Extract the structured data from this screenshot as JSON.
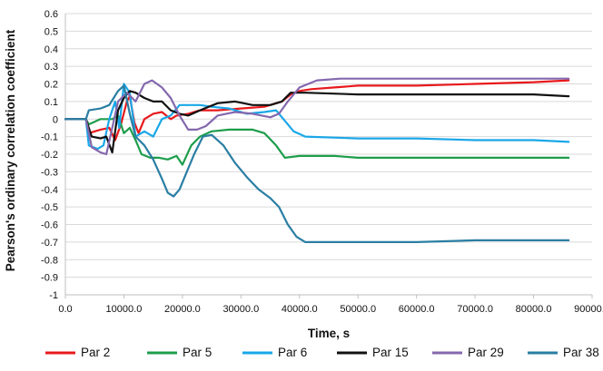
{
  "chart_data": {
    "type": "line",
    "xlabel": "Time, s",
    "ylabel": "Pearson's ordinary correlation coefficient",
    "xlim": [
      0,
      90000
    ],
    "ylim": [
      -1,
      0.6
    ],
    "x_ticks": [
      0,
      10000,
      20000,
      30000,
      40000,
      50000,
      60000,
      70000,
      80000,
      90000
    ],
    "x_tick_labels": [
      "0.0",
      "10000.0",
      "20000.0",
      "30000.0",
      "40000.0",
      "50000.0",
      "60000.0",
      "70000.0",
      "80000.0",
      "90000.0"
    ],
    "y_ticks": [
      0.6,
      0.5,
      0.4,
      0.3,
      0.2,
      0.1,
      0,
      -0.1,
      -0.2,
      -0.3,
      -0.4,
      -0.5,
      -0.6,
      -0.7,
      -0.8,
      -0.9,
      -1
    ],
    "y_tick_labels": [
      "0.6",
      "0.5",
      "0.4",
      "0.3",
      "0.2",
      "0.1",
      "0",
      "-0.1",
      "-0.2",
      "-0.3",
      "-0.4",
      "-0.5",
      "-0.6",
      "-0.7",
      "-0.8",
      "-0.9",
      "-1"
    ],
    "grid": "horizontal",
    "legend_position": "bottom",
    "series": [
      {
        "name": "Par 2",
        "color": "#e8191c",
        "points": [
          [
            0,
            0
          ],
          [
            3500,
            0
          ],
          [
            4000,
            -0.08
          ],
          [
            6000,
            -0.06
          ],
          [
            7500,
            -0.05
          ],
          [
            8500,
            -0.12
          ],
          [
            9500,
            -0.03
          ],
          [
            10500,
            0.1
          ],
          [
            11000,
            0.13
          ],
          [
            11800,
            -0.02
          ],
          [
            12500,
            -0.08
          ],
          [
            13500,
            0.0
          ],
          [
            15000,
            0.03
          ],
          [
            16500,
            0.04
          ],
          [
            18000,
            0.0
          ],
          [
            19000,
            0.02
          ],
          [
            21000,
            0.03
          ],
          [
            23000,
            0.05
          ],
          [
            26000,
            0.05
          ],
          [
            30000,
            0.06
          ],
          [
            34000,
            0.07
          ],
          [
            37000,
            0.1
          ],
          [
            38500,
            0.14
          ],
          [
            40000,
            0.16
          ],
          [
            42000,
            0.17
          ],
          [
            46000,
            0.18
          ],
          [
            50000,
            0.19
          ],
          [
            60000,
            0.19
          ],
          [
            70000,
            0.2
          ],
          [
            80000,
            0.21
          ],
          [
            86000,
            0.22
          ]
        ]
      },
      {
        "name": "Par 5",
        "color": "#1d9d4b",
        "points": [
          [
            0,
            0
          ],
          [
            3500,
            0
          ],
          [
            4000,
            -0.03
          ],
          [
            6000,
            0.0
          ],
          [
            8000,
            0.0
          ],
          [
            9000,
            0.02
          ],
          [
            10000,
            -0.08
          ],
          [
            11000,
            -0.05
          ],
          [
            12000,
            -0.12
          ],
          [
            13000,
            -0.2
          ],
          [
            14500,
            -0.22
          ],
          [
            16000,
            -0.22
          ],
          [
            17500,
            -0.23
          ],
          [
            19000,
            -0.21
          ],
          [
            20000,
            -0.26
          ],
          [
            21500,
            -0.15
          ],
          [
            23000,
            -0.1
          ],
          [
            25000,
            -0.07
          ],
          [
            28000,
            -0.06
          ],
          [
            32000,
            -0.06
          ],
          [
            34000,
            -0.08
          ],
          [
            36000,
            -0.15
          ],
          [
            37500,
            -0.22
          ],
          [
            40000,
            -0.21
          ],
          [
            46000,
            -0.21
          ],
          [
            50000,
            -0.22
          ],
          [
            60000,
            -0.22
          ],
          [
            70000,
            -0.22
          ],
          [
            80000,
            -0.22
          ],
          [
            86000,
            -0.22
          ]
        ]
      },
      {
        "name": "Par 6",
        "color": "#1aa7e8",
        "points": [
          [
            0,
            0
          ],
          [
            3500,
            0
          ],
          [
            4000,
            -0.15
          ],
          [
            5500,
            -0.17
          ],
          [
            6500,
            -0.15
          ],
          [
            7500,
            0.0
          ],
          [
            8500,
            0.1
          ],
          [
            9200,
            -0.05
          ],
          [
            10000,
            0.2
          ],
          [
            11000,
            0.15
          ],
          [
            12000,
            -0.1
          ],
          [
            13500,
            -0.07
          ],
          [
            15000,
            -0.1
          ],
          [
            16500,
            0.0
          ],
          [
            18000,
            0.02
          ],
          [
            19500,
            0.08
          ],
          [
            21000,
            0.08
          ],
          [
            23000,
            0.08
          ],
          [
            25000,
            0.07
          ],
          [
            28000,
            0.06
          ],
          [
            31000,
            0.03
          ],
          [
            34000,
            0.04
          ],
          [
            36000,
            0.05
          ],
          [
            37500,
            -0.01
          ],
          [
            39000,
            -0.07
          ],
          [
            41000,
            -0.1
          ],
          [
            50000,
            -0.11
          ],
          [
            60000,
            -0.11
          ],
          [
            70000,
            -0.12
          ],
          [
            80000,
            -0.12
          ],
          [
            86000,
            -0.13
          ]
        ]
      },
      {
        "name": "Par 15",
        "color": "#111111",
        "points": [
          [
            0,
            0
          ],
          [
            3500,
            0
          ],
          [
            4500,
            -0.1
          ],
          [
            6000,
            -0.11
          ],
          [
            7000,
            -0.1
          ],
          [
            8000,
            -0.19
          ],
          [
            9000,
            0.05
          ],
          [
            10000,
            0.12
          ],
          [
            11000,
            0.16
          ],
          [
            12000,
            0.15
          ],
          [
            13500,
            0.12
          ],
          [
            15000,
            0.1
          ],
          [
            16500,
            0.1
          ],
          [
            18000,
            0.05
          ],
          [
            19500,
            0.03
          ],
          [
            21000,
            0.02
          ],
          [
            23000,
            0.05
          ],
          [
            26000,
            0.09
          ],
          [
            29000,
            0.1
          ],
          [
            32000,
            0.08
          ],
          [
            35000,
            0.08
          ],
          [
            37000,
            0.1
          ],
          [
            38500,
            0.15
          ],
          [
            41000,
            0.15
          ],
          [
            50000,
            0.14
          ],
          [
            60000,
            0.14
          ],
          [
            70000,
            0.14
          ],
          [
            80000,
            0.14
          ],
          [
            86000,
            0.13
          ]
        ]
      },
      {
        "name": "Par 29",
        "color": "#8468ad",
        "points": [
          [
            0,
            0
          ],
          [
            3500,
            0
          ],
          [
            4500,
            -0.16
          ],
          [
            6000,
            -0.19
          ],
          [
            7000,
            -0.2
          ],
          [
            8000,
            -0.05
          ],
          [
            9000,
            0.1
          ],
          [
            10500,
            0.15
          ],
          [
            12000,
            0.1
          ],
          [
            13500,
            0.2
          ],
          [
            14800,
            0.22
          ],
          [
            16500,
            0.18
          ],
          [
            18000,
            0.12
          ],
          [
            19500,
            0.02
          ],
          [
            21000,
            -0.06
          ],
          [
            22500,
            -0.06
          ],
          [
            24000,
            -0.04
          ],
          [
            26000,
            0.02
          ],
          [
            29000,
            0.04
          ],
          [
            32000,
            0.03
          ],
          [
            35000,
            0.01
          ],
          [
            36500,
            0.03
          ],
          [
            38000,
            0.1
          ],
          [
            40000,
            0.18
          ],
          [
            43000,
            0.22
          ],
          [
            47000,
            0.23
          ],
          [
            55000,
            0.23
          ],
          [
            65000,
            0.23
          ],
          [
            75000,
            0.23
          ],
          [
            86000,
            0.23
          ]
        ]
      },
      {
        "name": "Par 38",
        "color": "#2a7ea3",
        "points": [
          [
            0,
            0
          ],
          [
            3500,
            0
          ],
          [
            4000,
            0.05
          ],
          [
            6000,
            0.06
          ],
          [
            7500,
            0.08
          ],
          [
            9000,
            0.16
          ],
          [
            10000,
            0.19
          ],
          [
            11000,
            0.03
          ],
          [
            12000,
            -0.1
          ],
          [
            13500,
            -0.15
          ],
          [
            15000,
            -0.23
          ],
          [
            16500,
            -0.34
          ],
          [
            17500,
            -0.42
          ],
          [
            18500,
            -0.44
          ],
          [
            19500,
            -0.4
          ],
          [
            20500,
            -0.32
          ],
          [
            22000,
            -0.2
          ],
          [
            23500,
            -0.1
          ],
          [
            25000,
            -0.09
          ],
          [
            27000,
            -0.15
          ],
          [
            29000,
            -0.25
          ],
          [
            31000,
            -0.33
          ],
          [
            33000,
            -0.4
          ],
          [
            35000,
            -0.45
          ],
          [
            36500,
            -0.5
          ],
          [
            38000,
            -0.6
          ],
          [
            39500,
            -0.67
          ],
          [
            41000,
            -0.7
          ],
          [
            45000,
            -0.7
          ],
          [
            50000,
            -0.7
          ],
          [
            60000,
            -0.7
          ],
          [
            70000,
            -0.69
          ],
          [
            80000,
            -0.69
          ],
          [
            86000,
            -0.69
          ]
        ]
      }
    ]
  }
}
